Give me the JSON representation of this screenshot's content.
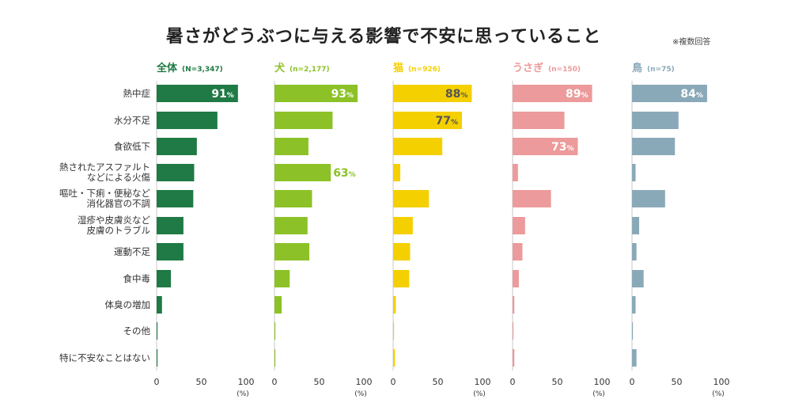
{
  "title": "暑さがどうぶつに与える影響で不安に思っていること",
  "note": "※複数回答",
  "chart_data": {
    "type": "bar",
    "orientation": "horizontal",
    "categories": [
      "熱中症",
      "水分不足",
      "食欲低下",
      "熱されたアスファルト|などによる火傷",
      "嘔吐・下痢・便秘など|消化器官の不調",
      "湿疹や皮膚炎など|皮膚のトラブル",
      "運動不足",
      "食中毒",
      "体臭の増加",
      "その他",
      "特に不安なことはない"
    ],
    "xlim": [
      0,
      100
    ],
    "x_ticks": [
      "0",
      "50",
      "100"
    ],
    "x_unit": "(%)",
    "value_suffix": "%",
    "series": [
      {
        "name": "全体",
        "n": "(N=3,347)",
        "color": "#1f7a45",
        "values": [
          91,
          68,
          45,
          42,
          41,
          30,
          30,
          16,
          6,
          1,
          1
        ],
        "labels": [
          {
            "index": 0,
            "text": "91",
            "pos": "inside"
          }
        ]
      },
      {
        "name": "犬",
        "n": "(n=2,177)",
        "color": "#8cc227",
        "values": [
          93,
          65,
          38,
          63,
          42,
          37,
          39,
          17,
          8,
          1,
          1
        ],
        "labels": [
          {
            "index": 0,
            "text": "93",
            "pos": "inside"
          },
          {
            "index": 3,
            "text": "63",
            "pos": "outside"
          }
        ]
      },
      {
        "name": "猫",
        "n": "(n=926)",
        "color": "#f5d000",
        "values": [
          88,
          77,
          55,
          8,
          40,
          22,
          19,
          18,
          3,
          1,
          2
        ],
        "labels": [
          {
            "index": 0,
            "text": "88",
            "pos": "inside"
          },
          {
            "index": 1,
            "text": "77",
            "pos": "inside"
          }
        ]
      },
      {
        "name": "うさぎ",
        "n": "(n=150)",
        "color": "#ec9a9b",
        "values": [
          89,
          58,
          73,
          6,
          43,
          14,
          11,
          7,
          2,
          1,
          2
        ],
        "labels": [
          {
            "index": 0,
            "text": "89",
            "pos": "inside"
          },
          {
            "index": 2,
            "text": "73",
            "pos": "inside"
          }
        ]
      },
      {
        "name": "鳥",
        "n": "(n=75)",
        "color": "#8aa9b8",
        "values": [
          84,
          52,
          48,
          4,
          37,
          8,
          5,
          13,
          4,
          1,
          5
        ],
        "labels": [
          {
            "index": 0,
            "text": "84",
            "pos": "inside"
          }
        ]
      }
    ],
    "grid": false,
    "legend": "none"
  }
}
